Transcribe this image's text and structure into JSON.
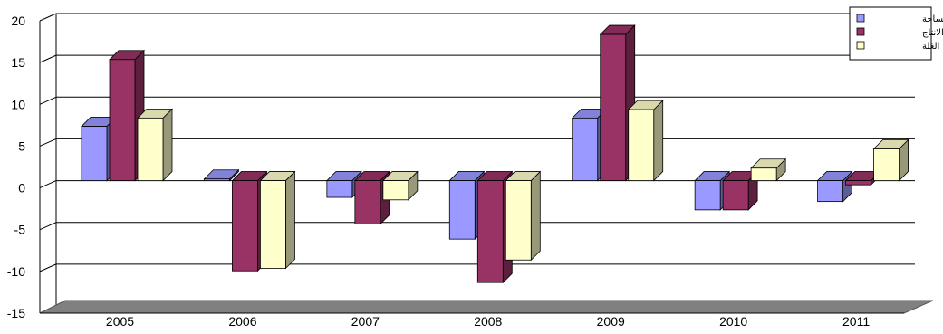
{
  "chart_data": {
    "type": "bar",
    "categories": [
      "2005",
      "2006",
      "2007",
      "2008",
      "2009",
      "2010",
      "2011"
    ],
    "series": [
      {
        "name": "المساحة",
        "values": [
          6.5,
          0.2,
          -2.0,
          -7.0,
          7.5,
          -3.5,
          -2.5
        ]
      },
      {
        "name": "الانتاج",
        "values": [
          14.5,
          -10.8,
          -5.2,
          -12.2,
          17.5,
          -3.5,
          -0.5
        ]
      },
      {
        "name": "الغلة",
        "values": [
          7.5,
          -10.5,
          -2.3,
          -9.5,
          8.5,
          1.5,
          3.8
        ]
      }
    ],
    "ylim": [
      -15,
      20
    ],
    "yticks": [
      "20",
      "15",
      "10",
      "5",
      "0",
      "-5",
      "-10",
      "-15"
    ],
    "grid": true,
    "legend_position": "top-right",
    "colors": {
      "series": [
        "#9999FF",
        "#993366",
        "#FFFFCC"
      ],
      "floor": "#808080"
    }
  }
}
